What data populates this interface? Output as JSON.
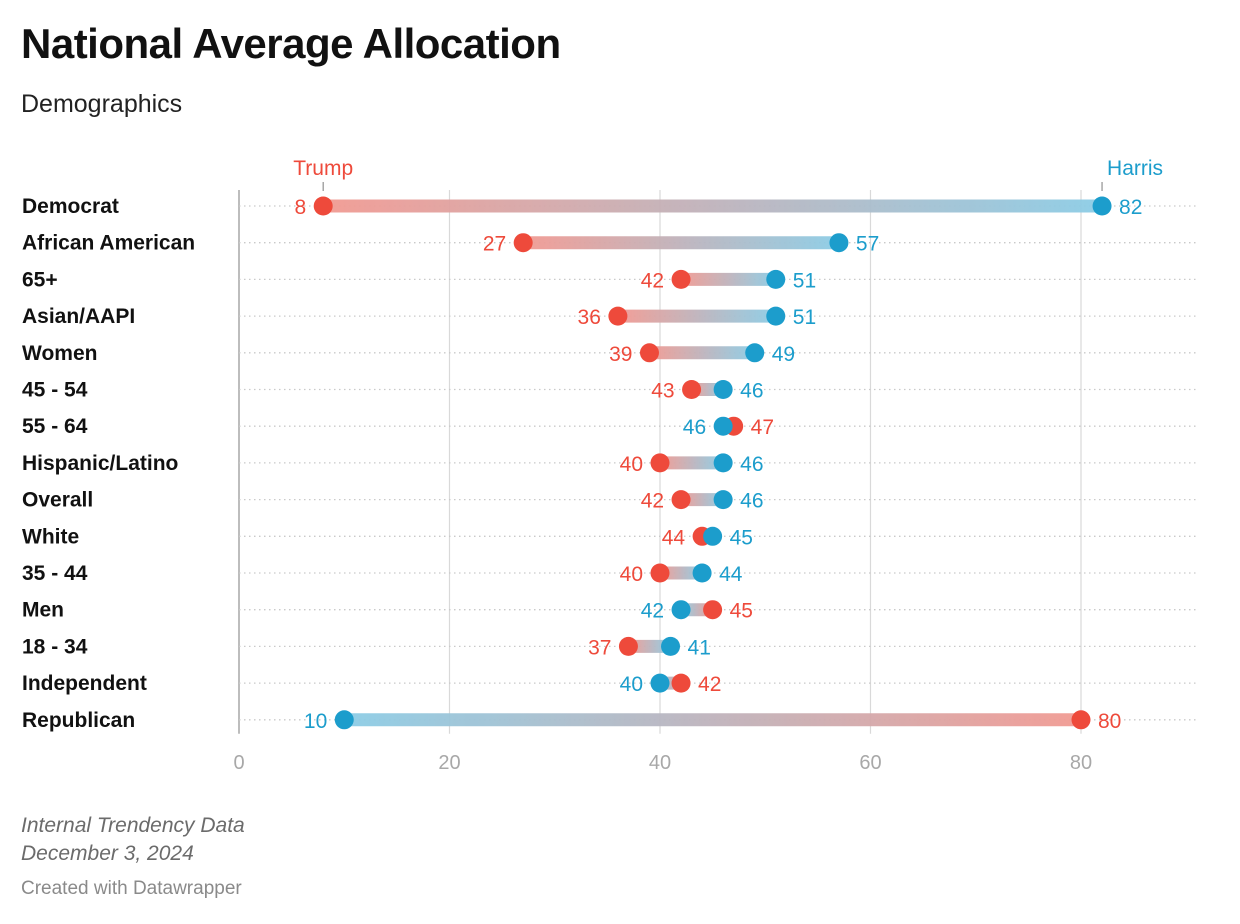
{
  "title": "National Average Allocation",
  "subtitle": "Demographics",
  "notes": [
    "Internal Trendency Data",
    "December 3, 2024"
  ],
  "credit": "Created with Datawrapper",
  "colors": {
    "trump": "#ee4a3b",
    "harris": "#1c9dcc",
    "grid": "#d9d9d9",
    "axis": "#bdbdbd",
    "tick": "#a8a8a8"
  },
  "chart_data": {
    "type": "dot-range",
    "xlim": [
      0,
      90
    ],
    "xticks": [
      0,
      20,
      40,
      60,
      80
    ],
    "legend": {
      "trump": "Trump",
      "harris": "Harris"
    },
    "categories": [
      "Democrat",
      "African American",
      "65+",
      "Asian/AAPI",
      "Women",
      "45 - 54",
      "55 - 64",
      "Hispanic/Latino",
      "Overall",
      "White",
      "35 - 44",
      "Men",
      "18 - 34",
      "Independent",
      "Republican"
    ],
    "series": [
      {
        "name": "Trump",
        "values": [
          8,
          27,
          42,
          36,
          39,
          43,
          47,
          40,
          42,
          44,
          40,
          45,
          37,
          42,
          80
        ]
      },
      {
        "name": "Harris",
        "values": [
          82,
          57,
          51,
          51,
          49,
          46,
          46,
          46,
          46,
          45,
          44,
          42,
          41,
          40,
          10
        ]
      }
    ]
  }
}
